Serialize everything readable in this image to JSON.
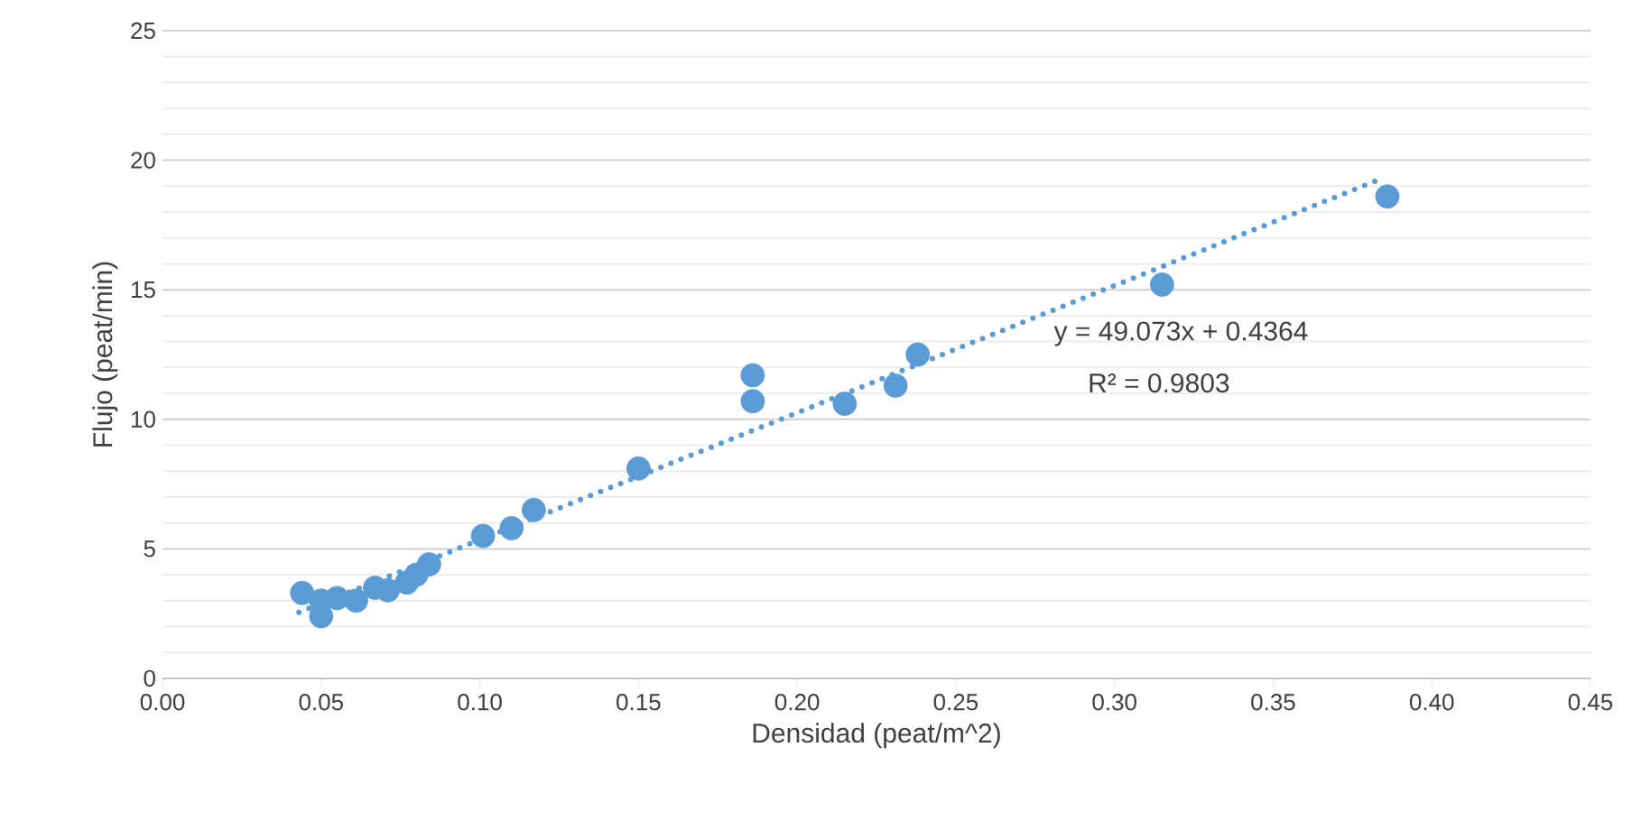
{
  "chart_data": {
    "type": "scatter",
    "xlabel": "Densidad (peat/m^2)",
    "ylabel": "Flujo (peat/min)",
    "annotations": [
      "y = 49.073x + 0.4364",
      "R² = 0.9803"
    ],
    "xlim": [
      0,
      0.45
    ],
    "ylim": [
      0,
      25
    ],
    "xticks": [
      {
        "value": 0,
        "label": "0.00"
      },
      {
        "value": 0.05,
        "label": "0.05"
      },
      {
        "value": 0.1,
        "label": "0.10"
      },
      {
        "value": 0.15,
        "label": "0.15"
      },
      {
        "value": 0.2,
        "label": "0.20"
      },
      {
        "value": 0.25,
        "label": "0.25"
      },
      {
        "value": 0.3,
        "label": "0.30"
      },
      {
        "value": 0.35,
        "label": "0.35"
      },
      {
        "value": 0.4,
        "label": "0.40"
      },
      {
        "value": 0.45,
        "label": "0.45"
      }
    ],
    "yticks": [
      0,
      5,
      10,
      15,
      20,
      25
    ],
    "grid": "y",
    "series": [
      {
        "color": "#5b9bd5",
        "marker": "circle",
        "x": [
          0.044,
          0.05,
          0.05,
          0.055,
          0.061,
          0.067,
          0.071,
          0.077,
          0.08,
          0.084,
          0.101,
          0.11,
          0.117,
          0.15,
          0.186,
          0.186,
          0.215,
          0.231,
          0.238,
          0.315,
          0.386
        ],
        "values": [
          3.3,
          3.0,
          2.4,
          3.1,
          3.0,
          3.5,
          3.4,
          3.7,
          4.0,
          4.4,
          5.5,
          5.8,
          6.5,
          8.1,
          10.7,
          11.7,
          10.6,
          11.3,
          12.5,
          15.2,
          18.6
        ]
      },
      {
        "type": "line",
        "color": "#5b9bd5",
        "marker": "none",
        "line_style": "dotted",
        "x": [
          0.043,
          0.385
        ],
        "values": [
          2.55,
          19.33
        ]
      }
    ]
  }
}
